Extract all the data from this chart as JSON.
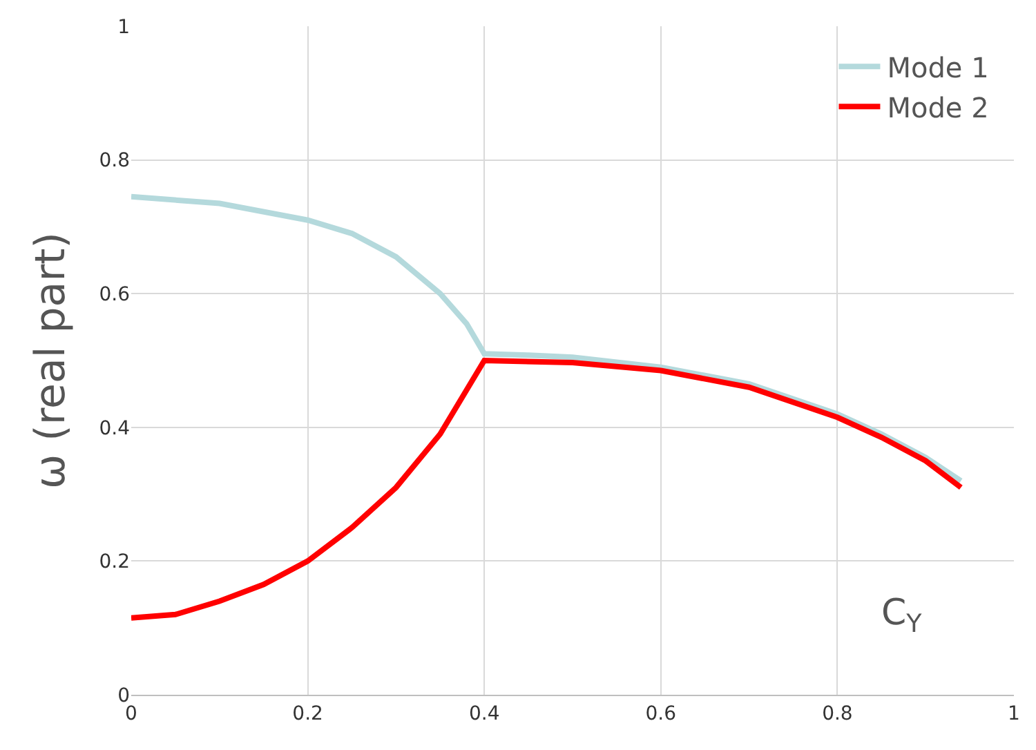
{
  "chart_data": {
    "type": "line",
    "ylabel": "ω (real part)",
    "xlim": [
      0,
      1
    ],
    "ylim": [
      0,
      1
    ],
    "xticks": [
      0,
      0.2,
      0.4,
      0.6,
      0.8,
      1
    ],
    "yticks": [
      0,
      0.2,
      0.4,
      0.6,
      0.8,
      1
    ],
    "grid": true,
    "legend": "top right",
    "marker": "none",
    "line_style": "solid",
    "annotations": [
      "C$_{Y}$"
    ],
    "series": [
      {
        "name": "Mode 1",
        "color": "#b4d9dc",
        "x": [
          0,
          0.1,
          0.2,
          0.25,
          0.3,
          0.35,
          0.38,
          0.4,
          0.45,
          0.5,
          0.6,
          0.7,
          0.8,
          0.85,
          0.9,
          0.94
        ],
        "values": [
          0.745,
          0.735,
          0.71,
          0.69,
          0.655,
          0.6,
          0.555,
          0.51,
          0.508,
          0.505,
          0.49,
          0.465,
          0.42,
          0.39,
          0.355,
          0.32
        ]
      },
      {
        "name": "Mode 2",
        "color": "#ff0000",
        "x": [
          0,
          0.05,
          0.1,
          0.15,
          0.2,
          0.25,
          0.3,
          0.35,
          0.4,
          0.5,
          0.6,
          0.7,
          0.8,
          0.85,
          0.9,
          0.94
        ],
        "values": [
          0.115,
          0.12,
          0.14,
          0.165,
          0.2,
          0.25,
          0.31,
          0.39,
          0.5,
          0.497,
          0.485,
          0.46,
          0.415,
          0.385,
          0.35,
          0.31
        ]
      }
    ]
  }
}
